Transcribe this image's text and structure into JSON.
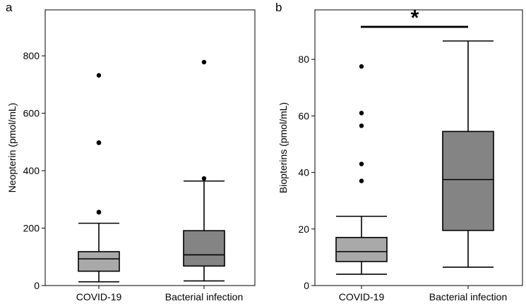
{
  "chart_data": [
    {
      "type": "box",
      "panel_label": "a",
      "ylabel": "Neopterin (pmol/mL)",
      "xlabel": "",
      "ylim": [
        0,
        960
      ],
      "yticks": [
        0,
        200,
        400,
        600,
        800
      ],
      "categories": [
        "COVID-19",
        "Bacterial infection"
      ],
      "boxes": [
        {
          "name": "COVID-19",
          "whisker_low": 13,
          "q1": 50,
          "median": 93,
          "q3": 118,
          "whisker_high": 217,
          "outliers": [
            255,
            256,
            497,
            498,
            732
          ],
          "fill": "#a9a9a9"
        },
        {
          "name": "Bacterial infection",
          "whisker_low": 16,
          "q1": 68,
          "median": 107,
          "q3": 191,
          "whisker_high": 364,
          "outliers": [
            373,
            778
          ],
          "fill": "#848484"
        }
      ],
      "significance": null
    },
    {
      "type": "box",
      "panel_label": "b",
      "ylabel": "Biopterins (pmol/mL)",
      "xlabel": "",
      "ylim": [
        0,
        97.5
      ],
      "yticks": [
        0,
        20,
        40,
        60,
        80
      ],
      "categories": [
        "COVID-19",
        "Bacterial infection"
      ],
      "boxes": [
        {
          "name": "COVID-19",
          "whisker_low": 4,
          "q1": 8.5,
          "median": 12,
          "q3": 17,
          "whisker_high": 24.5,
          "outliers": [
            37,
            43,
            56.5,
            61,
            77.5
          ],
          "fill": "#a9a9a9"
        },
        {
          "name": "Bacterial infection",
          "whisker_low": 6.5,
          "q1": 19.5,
          "median": 37.5,
          "q3": 54.5,
          "whisker_high": 86.5,
          "outliers": [],
          "fill": "#848484"
        }
      ],
      "significance": {
        "label": "*",
        "y": 91.5
      }
    }
  ]
}
